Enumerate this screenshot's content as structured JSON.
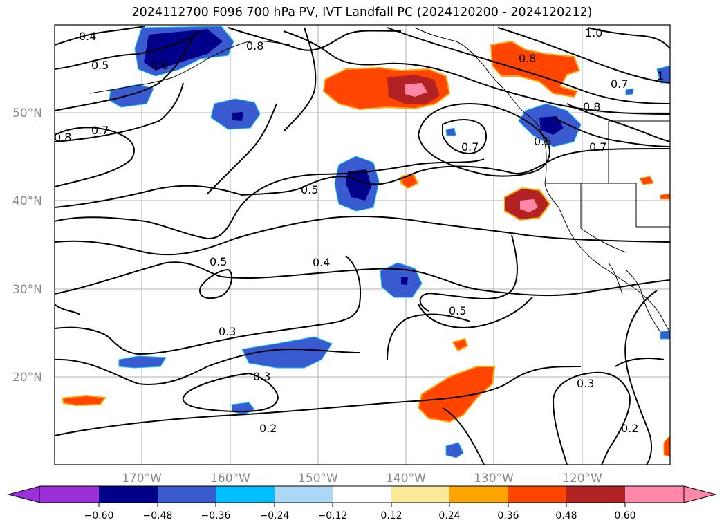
{
  "title": "2024112700 F096 700 hPa PV, IVT Landfall PC (2024120200 - 2024120212)",
  "map": {
    "lat_labels": [
      "50°N",
      "40°N",
      "30°N",
      "20°N"
    ],
    "lon_labels": [
      "170°W",
      "160°W",
      "150°W",
      "140°W",
      "130°W",
      "120°W"
    ],
    "contour_labels": [
      "0.4",
      "0.5",
      "0.6",
      "0.8",
      "0.7",
      "0.8",
      "0.5",
      "0.4",
      "0.5",
      "0.3",
      "0.3",
      "0.2",
      "0.5",
      "0.3",
      "0.2",
      "1.0",
      "0.8",
      "0.7",
      "0.8",
      "0.7",
      "0.7",
      "0.6",
      "1"
    ],
    "colors": {
      "coast": "#000000",
      "grid": "#b0b0b0",
      "contour": "#000000"
    }
  },
  "colorbar": {
    "ticks": [
      "−0.60",
      "−0.48",
      "−0.36",
      "−0.24",
      "−0.12",
      "0.12",
      "0.24",
      "0.36",
      "0.48",
      "0.60"
    ],
    "colors": [
      "#9b30d9",
      "#00008b",
      "#3a5bd0",
      "#00bfff",
      "#add8f5",
      "#ffffff",
      "#fbe99a",
      "#ffa500",
      "#ff4500",
      "#b22222",
      "#ff88a8"
    ]
  }
}
